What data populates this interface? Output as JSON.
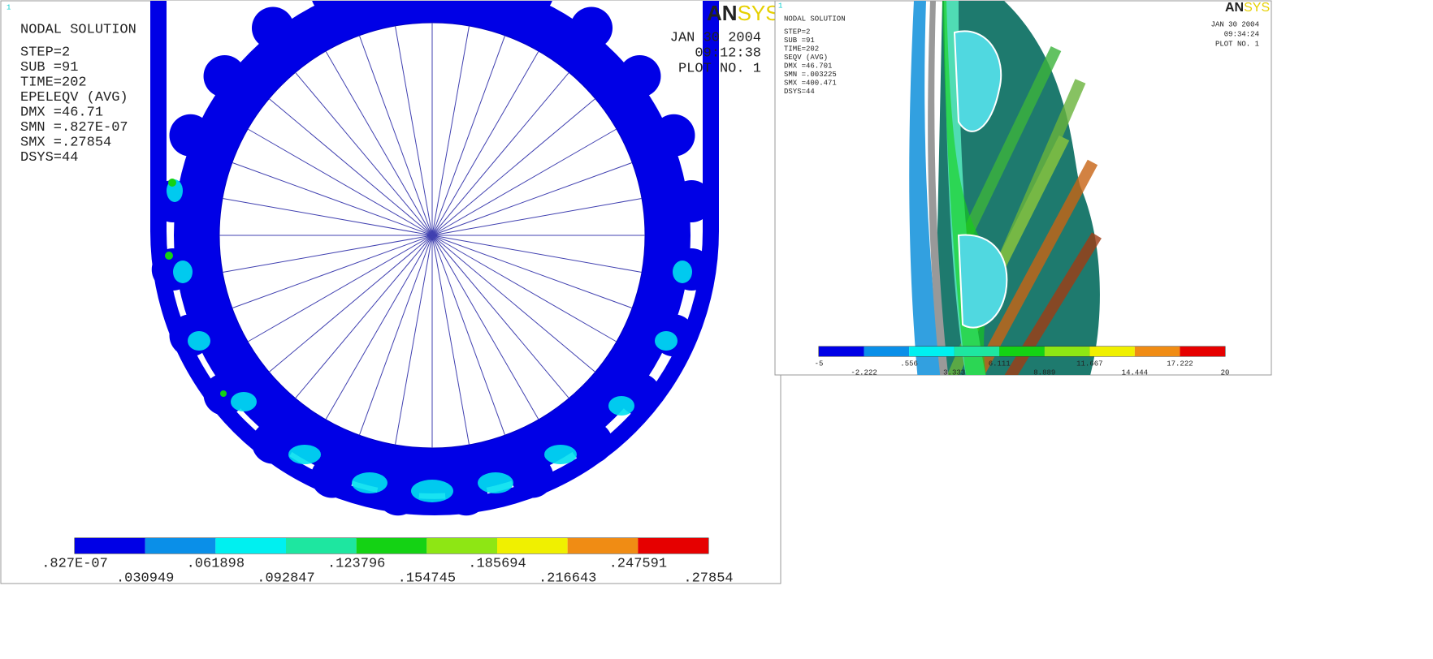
{
  "left_panel": {
    "window_number": "1",
    "title": "NODAL SOLUTION",
    "info": [
      "STEP=2",
      "SUB =91",
      "TIME=202",
      "EPELEQV  (AVG)",
      "DMX =46.71",
      "SMN =.827E-07",
      "SMX =.27854",
      "DSYS=44"
    ],
    "logo": {
      "dark": "AN",
      "light": "SYS"
    },
    "date": "JAN 30 2004",
    "time": "09:12:38",
    "plot": "PLOT NO.   1",
    "legend": {
      "colors": [
        "#0000e6",
        "#0a8fe8",
        "#00f0f0",
        "#1ee6a0",
        "#14d214",
        "#8ee614",
        "#f0f000",
        "#f08c14",
        "#e60000"
      ],
      "labels": [
        ".827E-07",
        ".030949",
        ".061898",
        ".092847",
        ".123796",
        ".154745",
        ".185694",
        ".216643",
        ".247591",
        ".27854"
      ]
    }
  },
  "right_panel": {
    "window_number": "1",
    "title": "NODAL SOLUTION",
    "info": [
      "STEP=2",
      "SUB =91",
      "TIME=202",
      "SEQV     (AVG)",
      "DMX =46.701",
      "SMN =.003225",
      "SMX =400.471",
      "DSYS=44"
    ],
    "logo": {
      "dark": "AN",
      "light": "SYS"
    },
    "date": "JAN 30 2004",
    "time": "09:34:24",
    "plot": "PLOT NO.   1",
    "legend": {
      "colors": [
        "#0000e6",
        "#0a8fe8",
        "#00f0f0",
        "#1ee6a0",
        "#14d214",
        "#8ee614",
        "#f0f000",
        "#f08c14",
        "#e60000"
      ],
      "labels": [
        "-5",
        "-2.222",
        ".556",
        "3.333",
        "6.111",
        "8.889",
        "11.667",
        "14.444",
        "17.222",
        "20"
      ]
    }
  }
}
